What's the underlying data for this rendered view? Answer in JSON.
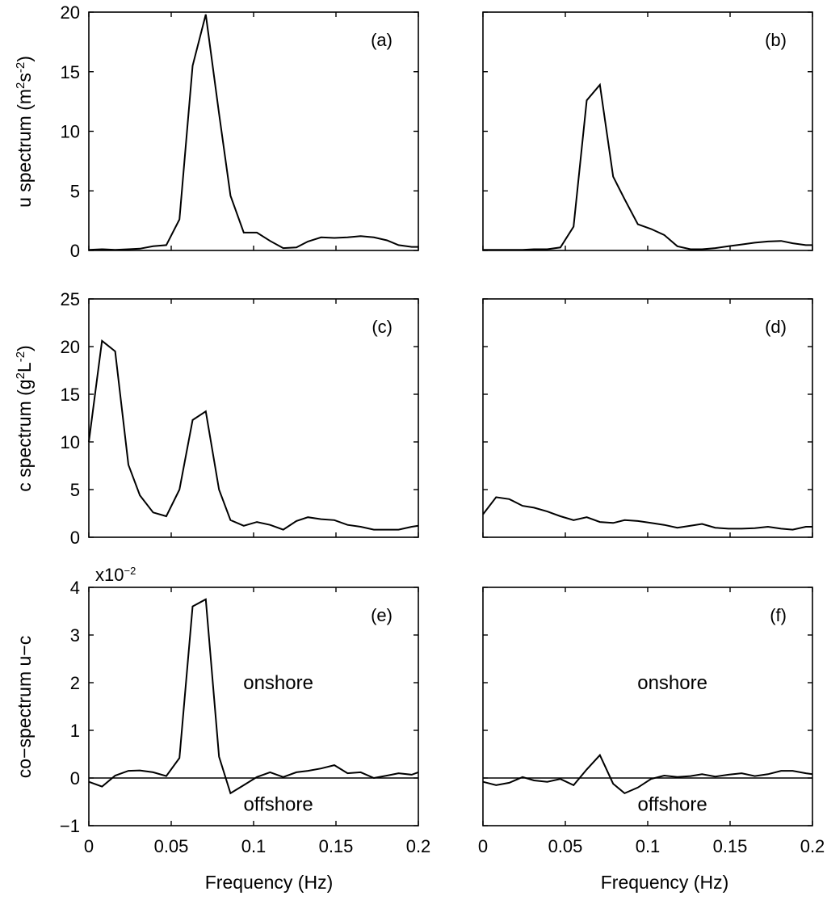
{
  "figure": {
    "xlabel": "Frequency (Hz)",
    "left_ylabels": {
      "row1_prefix": "u spectrum (m",
      "row1_sup1": "2",
      "row1_mid": "s",
      "row1_sup2": "-2",
      "row1_suffix": ")",
      "row2_prefix": "c spectrum (g",
      "row2_sup1": "2",
      "row2_mid": "L",
      "row2_sup2": "-2",
      "row2_suffix": ")",
      "row3": "co−spectrum u−c"
    },
    "scale_note_base": "x10",
    "scale_note_exp": "−2"
  },
  "chart_data": [
    {
      "id": "a",
      "type": "line",
      "panel_label": "(a)",
      "row": 0,
      "col": 0,
      "xlim": [
        0,
        0.2
      ],
      "ylim": [
        0,
        20
      ],
      "xticks": [
        "0",
        "0.05",
        "0.1",
        "0.15",
        "0.2"
      ],
      "xtick_values": [
        0,
        0.05,
        0.1,
        0.15,
        0.2
      ],
      "show_xticklabels": false,
      "yticks": [
        "0",
        "5",
        "10",
        "15",
        "20"
      ],
      "ytick_values": [
        0,
        5,
        10,
        15,
        20
      ],
      "show_yticklabels": true,
      "x": [
        0,
        0.008,
        0.016,
        0.024,
        0.031,
        0.039,
        0.047,
        0.055,
        0.063,
        0.071,
        0.079,
        0.086,
        0.094,
        0.102,
        0.11,
        0.118,
        0.126,
        0.133,
        0.141,
        0.149,
        0.157,
        0.165,
        0.173,
        0.181,
        0.188,
        0.196,
        0.2
      ],
      "y": [
        0.05,
        0.1,
        0.05,
        0.1,
        0.15,
        0.35,
        0.45,
        2.6,
        15.5,
        19.8,
        11.5,
        4.6,
        1.5,
        1.5,
        0.8,
        0.2,
        0.25,
        0.75,
        1.1,
        1.05,
        1.1,
        1.2,
        1.1,
        0.85,
        0.45,
        0.3,
        0.3
      ]
    },
    {
      "id": "b",
      "type": "line",
      "panel_label": "(b)",
      "row": 0,
      "col": 1,
      "xlim": [
        0,
        0.2
      ],
      "ylim": [
        0,
        20
      ],
      "xticks": [
        "0",
        "0.05",
        "0.1",
        "0.15",
        "0.2"
      ],
      "xtick_values": [
        0,
        0.05,
        0.1,
        0.15,
        0.2
      ],
      "show_xticklabels": false,
      "yticks": [
        "0",
        "5",
        "10",
        "15",
        "20"
      ],
      "ytick_values": [
        0,
        5,
        10,
        15,
        20
      ],
      "show_yticklabels": false,
      "x": [
        0,
        0.008,
        0.016,
        0.024,
        0.031,
        0.039,
        0.047,
        0.055,
        0.063,
        0.071,
        0.079,
        0.086,
        0.094,
        0.102,
        0.11,
        0.118,
        0.126,
        0.133,
        0.141,
        0.149,
        0.157,
        0.165,
        0.173,
        0.181,
        0.188,
        0.196,
        0.2
      ],
      "y": [
        0.05,
        0.05,
        0.05,
        0.05,
        0.1,
        0.1,
        0.25,
        2.0,
        12.6,
        13.9,
        6.2,
        4.3,
        2.2,
        1.8,
        1.3,
        0.35,
        0.1,
        0.1,
        0.2,
        0.35,
        0.5,
        0.65,
        0.75,
        0.8,
        0.6,
        0.45,
        0.45
      ]
    },
    {
      "id": "c",
      "type": "line",
      "panel_label": "(c)",
      "row": 1,
      "col": 0,
      "xlim": [
        0,
        0.2
      ],
      "ylim": [
        0,
        25
      ],
      "xticks": [
        "0",
        "0.05",
        "0.1",
        "0.15",
        "0.2"
      ],
      "xtick_values": [
        0,
        0.05,
        0.1,
        0.15,
        0.2
      ],
      "show_xticklabels": false,
      "yticks": [
        "0",
        "5",
        "10",
        "15",
        "20",
        "25"
      ],
      "ytick_values": [
        0,
        5,
        10,
        15,
        20,
        25
      ],
      "show_yticklabels": true,
      "x": [
        0,
        0.008,
        0.016,
        0.024,
        0.031,
        0.039,
        0.047,
        0.055,
        0.063,
        0.071,
        0.079,
        0.086,
        0.094,
        0.102,
        0.11,
        0.118,
        0.126,
        0.133,
        0.141,
        0.149,
        0.157,
        0.165,
        0.173,
        0.181,
        0.188,
        0.196,
        0.2
      ],
      "y": [
        10.0,
        20.6,
        19.5,
        7.6,
        4.4,
        2.6,
        2.2,
        5.0,
        12.3,
        13.2,
        5.0,
        1.8,
        1.2,
        1.6,
        1.3,
        0.8,
        1.7,
        2.1,
        1.9,
        1.8,
        1.3,
        1.1,
        0.8,
        0.8,
        0.8,
        1.1,
        1.2
      ]
    },
    {
      "id": "d",
      "type": "line",
      "panel_label": "(d)",
      "row": 1,
      "col": 1,
      "xlim": [
        0,
        0.2
      ],
      "ylim": [
        0,
        25
      ],
      "xticks": [
        "0",
        "0.05",
        "0.1",
        "0.15",
        "0.2"
      ],
      "xtick_values": [
        0,
        0.05,
        0.1,
        0.15,
        0.2
      ],
      "show_xticklabels": false,
      "yticks": [
        "0",
        "5",
        "10",
        "15",
        "20",
        "25"
      ],
      "ytick_values": [
        0,
        5,
        10,
        15,
        20,
        25
      ],
      "show_yticklabels": false,
      "x": [
        0,
        0.008,
        0.016,
        0.024,
        0.031,
        0.039,
        0.047,
        0.055,
        0.063,
        0.071,
        0.079,
        0.086,
        0.094,
        0.102,
        0.11,
        0.118,
        0.126,
        0.133,
        0.141,
        0.149,
        0.157,
        0.165,
        0.173,
        0.181,
        0.188,
        0.196,
        0.2
      ],
      "y": [
        2.4,
        4.2,
        4.0,
        3.3,
        3.1,
        2.7,
        2.2,
        1.8,
        2.1,
        1.6,
        1.5,
        1.8,
        1.7,
        1.5,
        1.3,
        1.0,
        1.2,
        1.4,
        1.0,
        0.9,
        0.9,
        0.95,
        1.1,
        0.9,
        0.8,
        1.1,
        1.1
      ]
    },
    {
      "id": "e",
      "type": "line",
      "panel_label": "(e)",
      "row": 2,
      "col": 0,
      "xlim": [
        0,
        0.2
      ],
      "ylim": [
        -1,
        4
      ],
      "xticks": [
        "0",
        "0.05",
        "0.1",
        "0.15",
        "0.2"
      ],
      "xtick_values": [
        0,
        0.05,
        0.1,
        0.15,
        0.2
      ],
      "show_xticklabels": true,
      "yticks": [
        "−1",
        "0",
        "1",
        "2",
        "3",
        "4"
      ],
      "ytick_values": [
        -1,
        0,
        1,
        2,
        3,
        4
      ],
      "show_yticklabels": true,
      "zero_line": true,
      "annotations": [
        {
          "text": "onshore",
          "x": 0.115,
          "y": 2.0
        },
        {
          "text": "offshore",
          "x": 0.115,
          "y": -0.55
        }
      ],
      "x": [
        0,
        0.008,
        0.016,
        0.024,
        0.031,
        0.039,
        0.047,
        0.055,
        0.063,
        0.071,
        0.079,
        0.086,
        0.094,
        0.102,
        0.11,
        0.118,
        0.126,
        0.133,
        0.141,
        0.149,
        0.157,
        0.165,
        0.173,
        0.181,
        0.188,
        0.196,
        0.2
      ],
      "y": [
        -0.08,
        -0.18,
        0.05,
        0.15,
        0.16,
        0.12,
        0.04,
        0.42,
        3.6,
        3.75,
        0.45,
        -0.32,
        -0.15,
        0.02,
        0.12,
        0.02,
        0.12,
        0.15,
        0.2,
        0.27,
        0.1,
        0.12,
        0.0,
        0.05,
        0.1,
        0.07,
        0.12
      ]
    },
    {
      "id": "f",
      "type": "line",
      "panel_label": "(f)",
      "row": 2,
      "col": 1,
      "xlim": [
        0,
        0.2
      ],
      "ylim": [
        -1,
        4
      ],
      "xticks": [
        "0",
        "0.05",
        "0.1",
        "0.15",
        "0.2"
      ],
      "xtick_values": [
        0,
        0.05,
        0.1,
        0.15,
        0.2
      ],
      "show_xticklabels": true,
      "yticks": [
        "−1",
        "0",
        "1",
        "2",
        "3",
        "4"
      ],
      "ytick_values": [
        -1,
        0,
        1,
        2,
        3,
        4
      ],
      "show_yticklabels": false,
      "zero_line": true,
      "annotations": [
        {
          "text": "onshore",
          "x": 0.115,
          "y": 2.0
        },
        {
          "text": "offshore",
          "x": 0.115,
          "y": -0.55
        }
      ],
      "x": [
        0,
        0.008,
        0.016,
        0.024,
        0.031,
        0.039,
        0.047,
        0.055,
        0.063,
        0.071,
        0.079,
        0.086,
        0.094,
        0.102,
        0.11,
        0.118,
        0.126,
        0.133,
        0.141,
        0.149,
        0.157,
        0.165,
        0.173,
        0.181,
        0.188,
        0.196,
        0.2
      ],
      "y": [
        -0.08,
        -0.15,
        -0.1,
        0.02,
        -0.05,
        -0.08,
        -0.02,
        -0.15,
        0.18,
        0.48,
        -0.12,
        -0.32,
        -0.2,
        -0.02,
        0.05,
        0.02,
        0.04,
        0.08,
        0.03,
        0.07,
        0.1,
        0.04,
        0.08,
        0.15,
        0.15,
        0.1,
        0.08
      ]
    }
  ]
}
